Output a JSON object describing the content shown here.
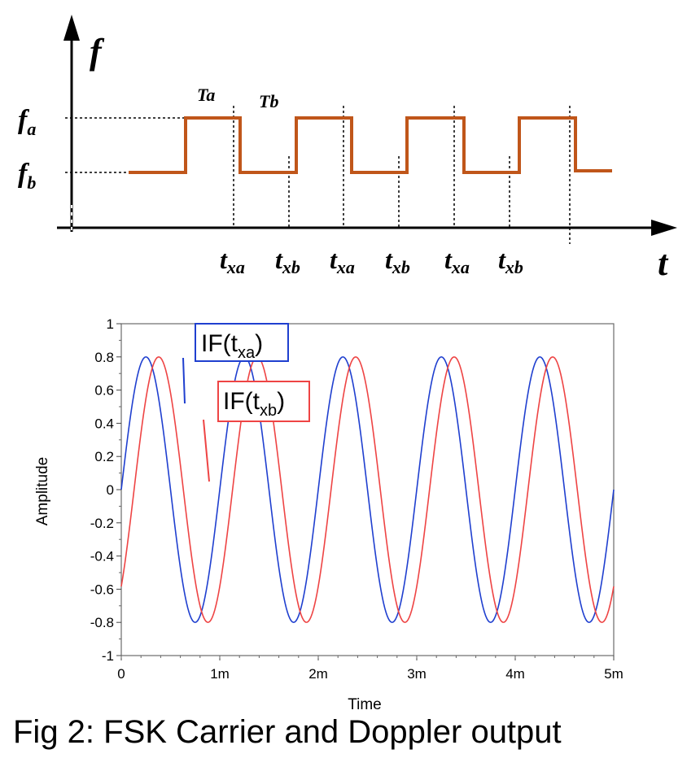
{
  "diagram": {
    "y_axis_label": "f",
    "x_axis_label": "t",
    "level_high_label": "f",
    "level_high_sub": "a",
    "level_low_label": "f",
    "level_low_sub": "b",
    "period_a_label": "Ta",
    "period_b_label": "Tb",
    "sample_labels": [
      {
        "main": "t",
        "sub": "xa"
      },
      {
        "main": "t",
        "sub": "xb"
      },
      {
        "main": "t",
        "sub": "xa"
      },
      {
        "main": "t",
        "sub": "xb"
      },
      {
        "main": "t",
        "sub": "xa"
      },
      {
        "main": "t",
        "sub": "xb"
      }
    ],
    "waveform_color": "#c0561a"
  },
  "chart_data": {
    "type": "line",
    "xlabel": "Time",
    "ylabel": "Amplitude",
    "xlim": [
      0,
      0.005
    ],
    "ylim": [
      -1,
      1
    ],
    "x_ticks": [
      "0",
      "1m",
      "2m",
      "3m",
      "4m",
      "5m"
    ],
    "y_ticks": [
      "1",
      "0.8",
      "0.6",
      "0.4",
      "0.2",
      "0",
      "-0.2",
      "-0.4",
      "-0.6",
      "-0.8",
      "-1"
    ],
    "series": [
      {
        "name": "IF(txa)",
        "name_main": "IF(t",
        "name_sub": "xa",
        "name_end": ")",
        "color": "#1f3fcf",
        "amplitude": 0.8,
        "period": 0.001,
        "phase_offset": 0
      },
      {
        "name": "IF(txb)",
        "name_main": "IF(t",
        "name_sub": "xb",
        "name_end": ")",
        "color": "#ee4444",
        "amplitude": 0.8,
        "period": 0.001,
        "phase_offset": -0.00013
      }
    ]
  },
  "caption": "Fig 2: FSK Carrier and Doppler output"
}
